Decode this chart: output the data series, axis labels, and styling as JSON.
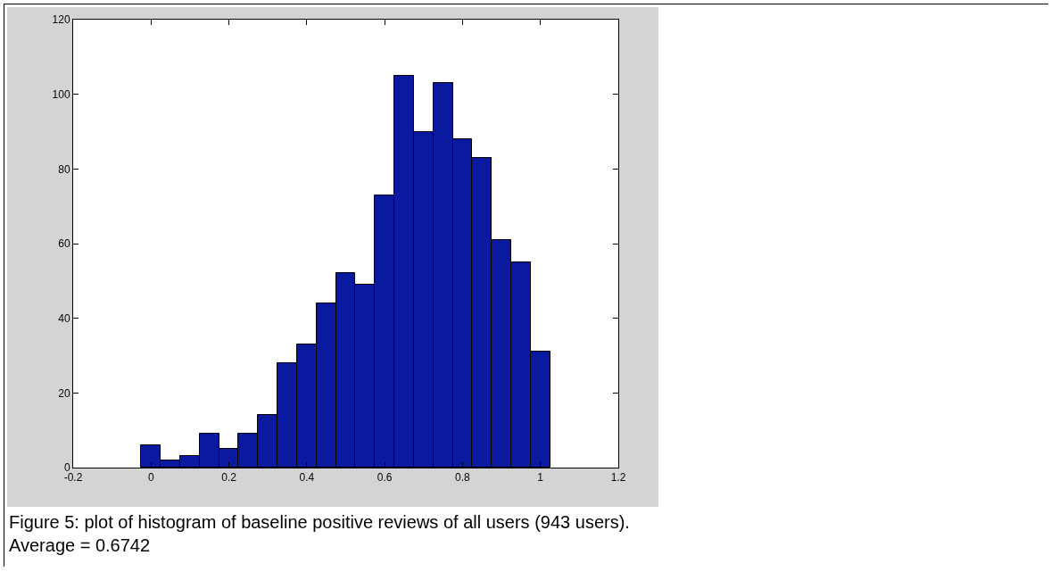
{
  "chart_data": {
    "type": "histogram",
    "bins": [
      -0.025,
      0.025,
      0.075,
      0.125,
      0.175,
      0.225,
      0.275,
      0.325,
      0.375,
      0.425,
      0.475,
      0.525,
      0.575,
      0.625,
      0.675,
      0.725,
      0.775,
      0.825,
      0.875,
      0.925,
      0.975,
      1.025
    ],
    "values": [
      6,
      2,
      3,
      9,
      5,
      9,
      14,
      28,
      33,
      44,
      52,
      49,
      73,
      105,
      90,
      103,
      88,
      83,
      61,
      55,
      31
    ],
    "color": "#0a1aa0",
    "xlim": [
      -0.2,
      1.2
    ],
    "xticks": [
      -0.2,
      0,
      0.2,
      0.4,
      0.6,
      0.8,
      1,
      1.2
    ],
    "ylim": [
      0,
      120
    ],
    "yticks": [
      0,
      20,
      40,
      60,
      80,
      100,
      120
    ],
    "grid": false,
    "annotations": [
      "Figure 5: plot of histogram of baseline positive reviews of all users (943 users). Average = 0.6742"
    ]
  }
}
